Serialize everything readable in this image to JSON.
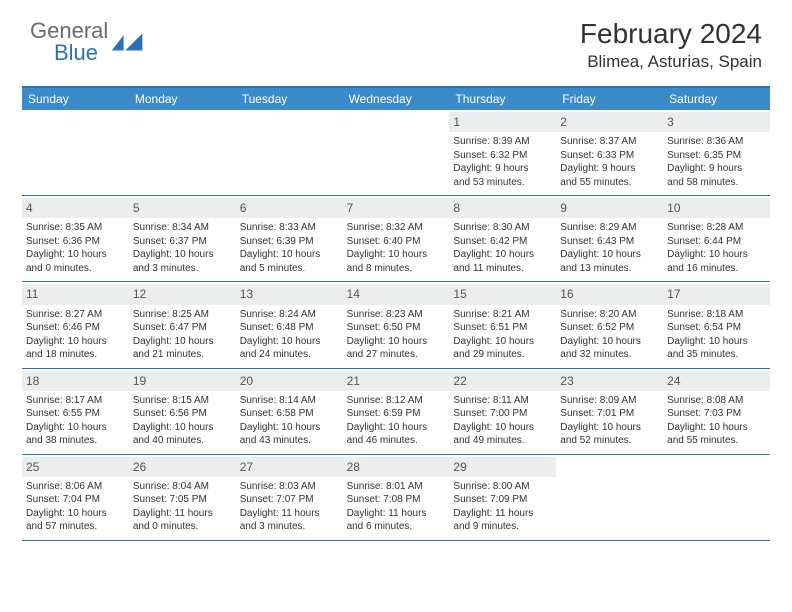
{
  "logo": {
    "word1": "General",
    "word2": "Blue"
  },
  "title": "February 2024",
  "location": "Blimea, Asturias, Spain",
  "colors": {
    "header_bar": "#3b8bc8",
    "border": "#2a72b5",
    "daynum_bg": "#eceded",
    "text": "#333333",
    "logo_gray": "#6b6b6b",
    "logo_blue": "#2a72b5"
  },
  "weekdays": [
    "Sunday",
    "Monday",
    "Tuesday",
    "Wednesday",
    "Thursday",
    "Friday",
    "Saturday"
  ],
  "weeks": [
    [
      null,
      null,
      null,
      null,
      {
        "n": "1",
        "sr": "Sunrise: 8:39 AM",
        "ss": "Sunset: 6:32 PM",
        "d1": "Daylight: 9 hours",
        "d2": "and 53 minutes."
      },
      {
        "n": "2",
        "sr": "Sunrise: 8:37 AM",
        "ss": "Sunset: 6:33 PM",
        "d1": "Daylight: 9 hours",
        "d2": "and 55 minutes."
      },
      {
        "n": "3",
        "sr": "Sunrise: 8:36 AM",
        "ss": "Sunset: 6:35 PM",
        "d1": "Daylight: 9 hours",
        "d2": "and 58 minutes."
      }
    ],
    [
      {
        "n": "4",
        "sr": "Sunrise: 8:35 AM",
        "ss": "Sunset: 6:36 PM",
        "d1": "Daylight: 10 hours",
        "d2": "and 0 minutes."
      },
      {
        "n": "5",
        "sr": "Sunrise: 8:34 AM",
        "ss": "Sunset: 6:37 PM",
        "d1": "Daylight: 10 hours",
        "d2": "and 3 minutes."
      },
      {
        "n": "6",
        "sr": "Sunrise: 8:33 AM",
        "ss": "Sunset: 6:39 PM",
        "d1": "Daylight: 10 hours",
        "d2": "and 5 minutes."
      },
      {
        "n": "7",
        "sr": "Sunrise: 8:32 AM",
        "ss": "Sunset: 6:40 PM",
        "d1": "Daylight: 10 hours",
        "d2": "and 8 minutes."
      },
      {
        "n": "8",
        "sr": "Sunrise: 8:30 AM",
        "ss": "Sunset: 6:42 PM",
        "d1": "Daylight: 10 hours",
        "d2": "and 11 minutes."
      },
      {
        "n": "9",
        "sr": "Sunrise: 8:29 AM",
        "ss": "Sunset: 6:43 PM",
        "d1": "Daylight: 10 hours",
        "d2": "and 13 minutes."
      },
      {
        "n": "10",
        "sr": "Sunrise: 8:28 AM",
        "ss": "Sunset: 6:44 PM",
        "d1": "Daylight: 10 hours",
        "d2": "and 16 minutes."
      }
    ],
    [
      {
        "n": "11",
        "sr": "Sunrise: 8:27 AM",
        "ss": "Sunset: 6:46 PM",
        "d1": "Daylight: 10 hours",
        "d2": "and 18 minutes."
      },
      {
        "n": "12",
        "sr": "Sunrise: 8:25 AM",
        "ss": "Sunset: 6:47 PM",
        "d1": "Daylight: 10 hours",
        "d2": "and 21 minutes."
      },
      {
        "n": "13",
        "sr": "Sunrise: 8:24 AM",
        "ss": "Sunset: 6:48 PM",
        "d1": "Daylight: 10 hours",
        "d2": "and 24 minutes."
      },
      {
        "n": "14",
        "sr": "Sunrise: 8:23 AM",
        "ss": "Sunset: 6:50 PM",
        "d1": "Daylight: 10 hours",
        "d2": "and 27 minutes."
      },
      {
        "n": "15",
        "sr": "Sunrise: 8:21 AM",
        "ss": "Sunset: 6:51 PM",
        "d1": "Daylight: 10 hours",
        "d2": "and 29 minutes."
      },
      {
        "n": "16",
        "sr": "Sunrise: 8:20 AM",
        "ss": "Sunset: 6:52 PM",
        "d1": "Daylight: 10 hours",
        "d2": "and 32 minutes."
      },
      {
        "n": "17",
        "sr": "Sunrise: 8:18 AM",
        "ss": "Sunset: 6:54 PM",
        "d1": "Daylight: 10 hours",
        "d2": "and 35 minutes."
      }
    ],
    [
      {
        "n": "18",
        "sr": "Sunrise: 8:17 AM",
        "ss": "Sunset: 6:55 PM",
        "d1": "Daylight: 10 hours",
        "d2": "and 38 minutes."
      },
      {
        "n": "19",
        "sr": "Sunrise: 8:15 AM",
        "ss": "Sunset: 6:56 PM",
        "d1": "Daylight: 10 hours",
        "d2": "and 40 minutes."
      },
      {
        "n": "20",
        "sr": "Sunrise: 8:14 AM",
        "ss": "Sunset: 6:58 PM",
        "d1": "Daylight: 10 hours",
        "d2": "and 43 minutes."
      },
      {
        "n": "21",
        "sr": "Sunrise: 8:12 AM",
        "ss": "Sunset: 6:59 PM",
        "d1": "Daylight: 10 hours",
        "d2": "and 46 minutes."
      },
      {
        "n": "22",
        "sr": "Sunrise: 8:11 AM",
        "ss": "Sunset: 7:00 PM",
        "d1": "Daylight: 10 hours",
        "d2": "and 49 minutes."
      },
      {
        "n": "23",
        "sr": "Sunrise: 8:09 AM",
        "ss": "Sunset: 7:01 PM",
        "d1": "Daylight: 10 hours",
        "d2": "and 52 minutes."
      },
      {
        "n": "24",
        "sr": "Sunrise: 8:08 AM",
        "ss": "Sunset: 7:03 PM",
        "d1": "Daylight: 10 hours",
        "d2": "and 55 minutes."
      }
    ],
    [
      {
        "n": "25",
        "sr": "Sunrise: 8:06 AM",
        "ss": "Sunset: 7:04 PM",
        "d1": "Daylight: 10 hours",
        "d2": "and 57 minutes."
      },
      {
        "n": "26",
        "sr": "Sunrise: 8:04 AM",
        "ss": "Sunset: 7:05 PM",
        "d1": "Daylight: 11 hours",
        "d2": "and 0 minutes."
      },
      {
        "n": "27",
        "sr": "Sunrise: 8:03 AM",
        "ss": "Sunset: 7:07 PM",
        "d1": "Daylight: 11 hours",
        "d2": "and 3 minutes."
      },
      {
        "n": "28",
        "sr": "Sunrise: 8:01 AM",
        "ss": "Sunset: 7:08 PM",
        "d1": "Daylight: 11 hours",
        "d2": "and 6 minutes."
      },
      {
        "n": "29",
        "sr": "Sunrise: 8:00 AM",
        "ss": "Sunset: 7:09 PM",
        "d1": "Daylight: 11 hours",
        "d2": "and 9 minutes."
      },
      null,
      null
    ]
  ]
}
